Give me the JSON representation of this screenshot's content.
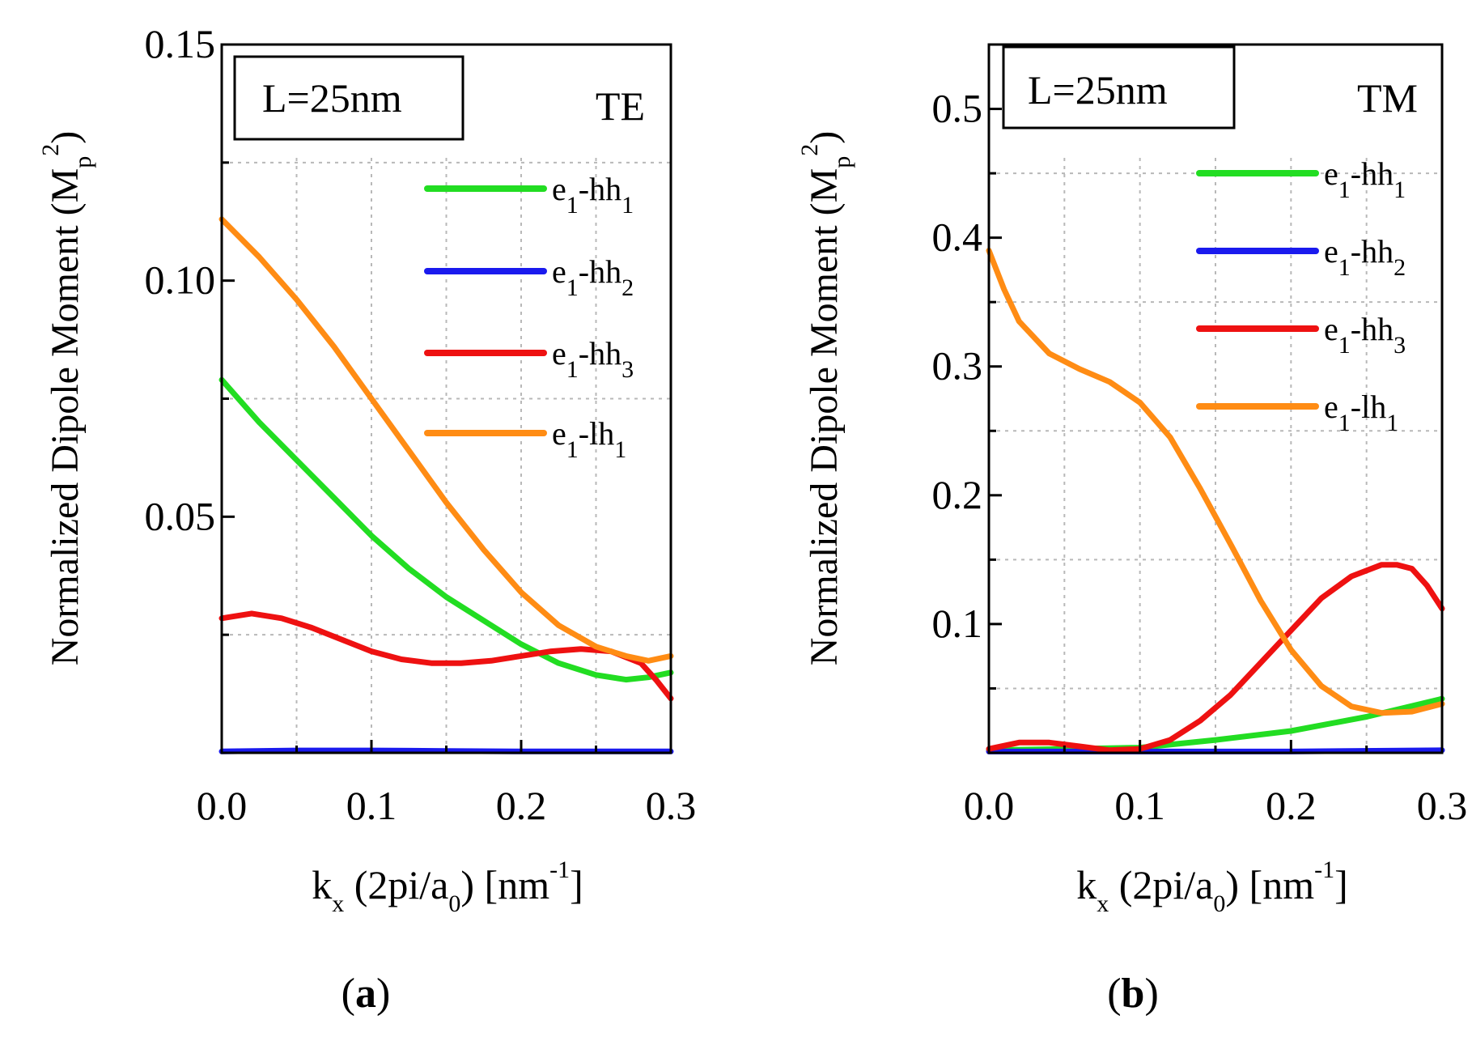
{
  "chart_data": [
    {
      "type": "line",
      "panel": "(a)",
      "panel_letter": "a",
      "box_label": "L=25nm",
      "polarization": "TE",
      "xlabel": "k",
      "xlabel_sub": "x",
      "xlabel_mid": "(2pi/a",
      "xlabel_sub2": "0",
      "xlabel_end": ")  [nm",
      "xlabel_sup": "-1",
      "xlabel_close": "]",
      "ylabel": "Normalized Dipole Moment",
      "ylabel_unit": "(M",
      "ylabel_unit_sub": "p",
      "ylabel_unit_sup": "2",
      "ylabel_unit_close": ")",
      "xlim": [
        0,
        0.3
      ],
      "ylim": [
        0,
        0.15
      ],
      "xticks": [
        0.0,
        0.1,
        0.2,
        0.3
      ],
      "xtick_labels": [
        "0.0",
        "0.1",
        "0.2",
        "0.3"
      ],
      "yticks": [
        0.05,
        0.1,
        0.15
      ],
      "ytick_labels": [
        "0.05",
        "0.10",
        "0.15"
      ],
      "series": [
        {
          "name": "e1-hh1",
          "label_main": "e",
          "label_sub": "1",
          "label_mid": "-hh",
          "label_sub2": "1",
          "color": "#22dd22",
          "x": [
            0,
            0.025,
            0.05,
            0.075,
            0.1,
            0.125,
            0.15,
            0.175,
            0.2,
            0.225,
            0.25,
            0.27,
            0.285,
            0.3
          ],
          "y": [
            0.079,
            0.07,
            0.062,
            0.054,
            0.046,
            0.039,
            0.033,
            0.028,
            0.023,
            0.019,
            0.0165,
            0.0155,
            0.016,
            0.017
          ]
        },
        {
          "name": "e1-hh2",
          "label_main": "e",
          "label_sub": "1",
          "label_mid": "-hh",
          "label_sub2": "2",
          "color": "#1a1aee",
          "x": [
            0,
            0.05,
            0.1,
            0.15,
            0.2,
            0.25,
            0.3
          ],
          "y": [
            0.0003,
            0.0005,
            0.0005,
            0.0004,
            0.0003,
            0.0003,
            0.0003
          ]
        },
        {
          "name": "e1-hh3",
          "label_main": "e",
          "label_sub": "1",
          "label_mid": "-hh",
          "label_sub2": "3",
          "color": "#ee1111",
          "x": [
            0,
            0.02,
            0.04,
            0.06,
            0.08,
            0.1,
            0.12,
            0.14,
            0.16,
            0.18,
            0.2,
            0.22,
            0.24,
            0.26,
            0.28,
            0.29,
            0.3
          ],
          "y": [
            0.0285,
            0.0295,
            0.0285,
            0.0265,
            0.024,
            0.0215,
            0.0198,
            0.019,
            0.019,
            0.0195,
            0.0205,
            0.0215,
            0.022,
            0.0215,
            0.019,
            0.0155,
            0.0115
          ]
        },
        {
          "name": "e1-lh1",
          "label_main": "e",
          "label_sub": "1",
          "label_mid": "-lh",
          "label_sub2": "1",
          "color": "#ff8c14",
          "x": [
            0,
            0.025,
            0.05,
            0.075,
            0.1,
            0.125,
            0.15,
            0.175,
            0.2,
            0.225,
            0.25,
            0.27,
            0.285,
            0.3
          ],
          "y": [
            0.113,
            0.105,
            0.096,
            0.086,
            0.075,
            0.064,
            0.053,
            0.043,
            0.034,
            0.027,
            0.0225,
            0.0205,
            0.0195,
            0.0205
          ]
        }
      ]
    },
    {
      "type": "line",
      "panel": "(b)",
      "panel_letter": "b",
      "box_label": "L=25nm",
      "polarization": "TM",
      "xlabel": "k",
      "xlabel_sub": "x",
      "xlabel_mid": "(2pi/a",
      "xlabel_sub2": "0",
      "xlabel_end": ")  [nm",
      "xlabel_sup": "-1",
      "xlabel_close": "]",
      "ylabel": "Normalized Dipole Moment",
      "ylabel_unit": "(M",
      "ylabel_unit_sub": "p",
      "ylabel_unit_sup": "2",
      "ylabel_unit_close": ")",
      "xlim": [
        0,
        0.3
      ],
      "ylim": [
        0,
        0.55
      ],
      "xticks": [
        0.0,
        0.1,
        0.2,
        0.3
      ],
      "xtick_labels": [
        "0.0",
        "0.1",
        "0.2",
        "0.3"
      ],
      "yticks": [
        0.1,
        0.2,
        0.3,
        0.4,
        0.5
      ],
      "ytick_labels": [
        "0.1",
        "0.2",
        "0.3",
        "0.4",
        "0.5"
      ],
      "series": [
        {
          "name": "e1-hh1",
          "label_main": "e",
          "label_sub": "1",
          "label_mid": "-hh",
          "label_sub2": "1",
          "color": "#22dd22",
          "x": [
            0,
            0.05,
            0.1,
            0.15,
            0.2,
            0.25,
            0.3
          ],
          "y": [
            0.002,
            0.003,
            0.004,
            0.01,
            0.017,
            0.028,
            0.042
          ]
        },
        {
          "name": "e1-hh2",
          "label_main": "e",
          "label_sub": "1",
          "label_mid": "-hh",
          "label_sub2": "2",
          "color": "#1a1aee",
          "x": [
            0,
            0.1,
            0.2,
            0.3
          ],
          "y": [
            0.001,
            0.001,
            0.001,
            0.002
          ]
        },
        {
          "name": "e1-hh3",
          "label_main": "e",
          "label_sub": "1",
          "label_mid": "-hh",
          "label_sub2": "3",
          "color": "#ee1111",
          "x": [
            0,
            0.02,
            0.04,
            0.06,
            0.08,
            0.1,
            0.12,
            0.14,
            0.16,
            0.18,
            0.2,
            0.22,
            0.24,
            0.26,
            0.27,
            0.28,
            0.29,
            0.3
          ],
          "y": [
            0.003,
            0.008,
            0.008,
            0.005,
            0.002,
            0.003,
            0.01,
            0.025,
            0.045,
            0.07,
            0.095,
            0.12,
            0.137,
            0.146,
            0.146,
            0.143,
            0.13,
            0.112
          ]
        },
        {
          "name": "e1-lh1",
          "label_main": "e",
          "label_sub": "1",
          "label_mid": "-lh",
          "label_sub2": "1",
          "color": "#ff8c14",
          "x": [
            0,
            0.01,
            0.02,
            0.04,
            0.06,
            0.08,
            0.1,
            0.12,
            0.14,
            0.16,
            0.18,
            0.2,
            0.22,
            0.24,
            0.26,
            0.28,
            0.3
          ],
          "y": [
            0.39,
            0.36,
            0.335,
            0.31,
            0.298,
            0.288,
            0.272,
            0.245,
            0.205,
            0.162,
            0.118,
            0.08,
            0.052,
            0.036,
            0.031,
            0.032,
            0.038
          ]
        }
      ]
    }
  ]
}
